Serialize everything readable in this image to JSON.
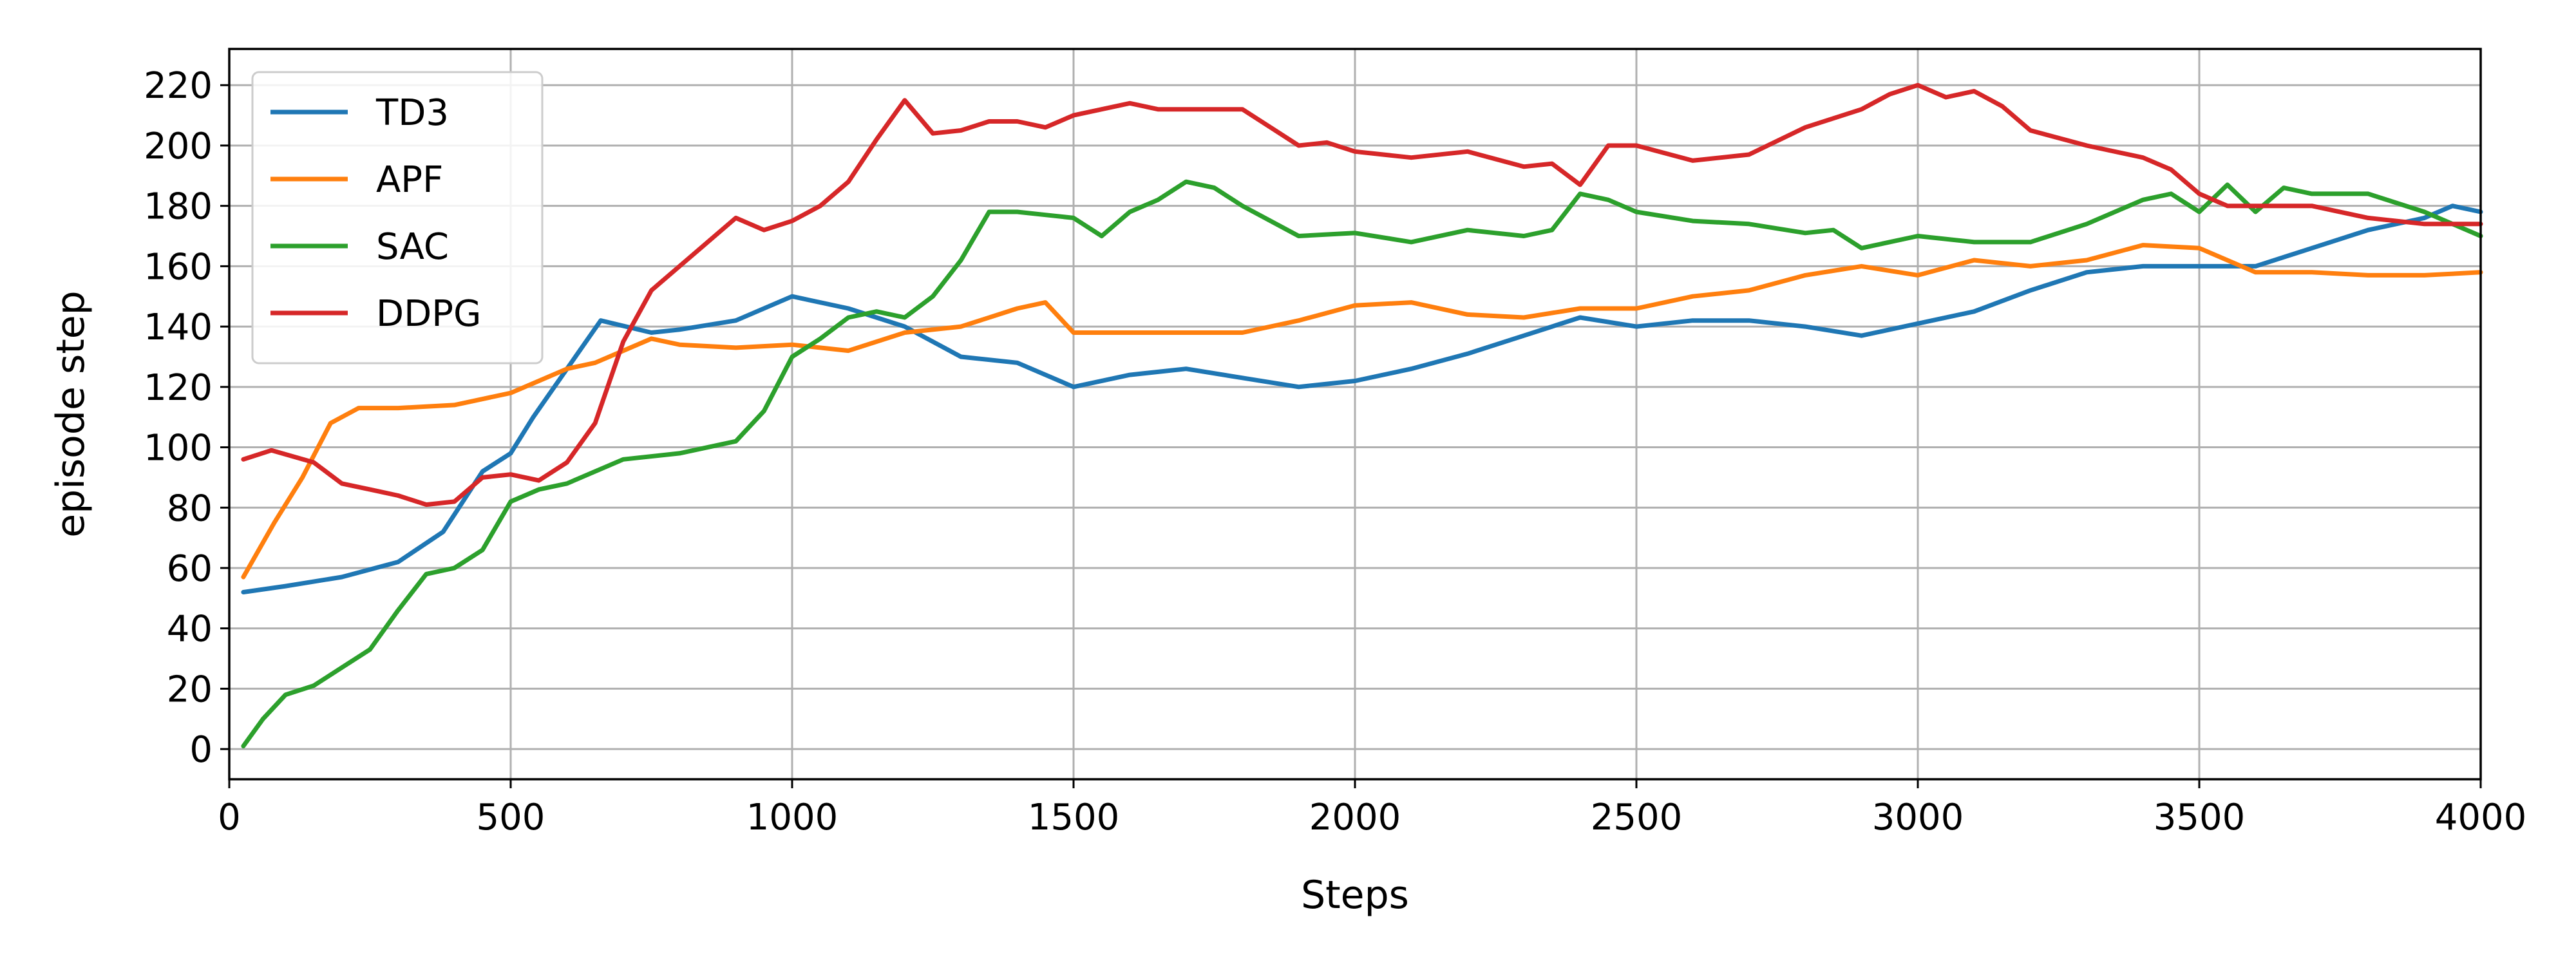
{
  "chart_data": {
    "type": "line",
    "xlabel": "Steps",
    "ylabel": "episode step",
    "xlim": [
      0,
      4000
    ],
    "ylim": [
      -10,
      232
    ],
    "xticks": [
      0,
      500,
      1000,
      1500,
      2000,
      2500,
      3000,
      3500,
      4000
    ],
    "xtick_labels": [
      "0",
      "500",
      "1000",
      "1500",
      "2000",
      "2500",
      "3000",
      "3500",
      "4000"
    ],
    "yticks": [
      0,
      20,
      40,
      60,
      80,
      100,
      120,
      140,
      160,
      180,
      200,
      220
    ],
    "ytick_labels": [
      "0",
      "20",
      "40",
      "60",
      "80",
      "100",
      "120",
      "140",
      "160",
      "180",
      "200",
      "220"
    ],
    "grid": true,
    "legend_position": "top-left",
    "series": [
      {
        "name": "TD3",
        "color": "#1f77b4",
        "x": [
          25,
          100,
          200,
          300,
          380,
          450,
          500,
          540,
          600,
          660,
          750,
          800,
          900,
          1000,
          1100,
          1200,
          1300,
          1400,
          1500,
          1600,
          1700,
          1800,
          1900,
          2000,
          2100,
          2200,
          2300,
          2400,
          2500,
          2600,
          2700,
          2800,
          2900,
          3000,
          3100,
          3200,
          3300,
          3400,
          3500,
          3600,
          3700,
          3800,
          3900,
          3950,
          4000
        ],
        "y": [
          52,
          54,
          57,
          62,
          72,
          92,
          98,
          110,
          126,
          142,
          138,
          139,
          142,
          150,
          146,
          140,
          130,
          128,
          120,
          124,
          126,
          123,
          120,
          122,
          126,
          131,
          137,
          143,
          140,
          142,
          142,
          140,
          137,
          141,
          145,
          152,
          158,
          160,
          160,
          160,
          166,
          172,
          176,
          180,
          178
        ]
      },
      {
        "name": "APF",
        "color": "#ff7f0e",
        "x": [
          25,
          80,
          130,
          180,
          230,
          300,
          400,
          500,
          550,
          600,
          650,
          700,
          750,
          800,
          900,
          1000,
          1100,
          1200,
          1300,
          1400,
          1450,
          1500,
          1600,
          1700,
          1800,
          1900,
          2000,
          2100,
          2200,
          2300,
          2400,
          2500,
          2600,
          2700,
          2800,
          2900,
          3000,
          3100,
          3200,
          3300,
          3400,
          3500,
          3600,
          3700,
          3800,
          3900,
          4000
        ],
        "y": [
          57,
          75,
          90,
          108,
          113,
          113,
          114,
          118,
          122,
          126,
          128,
          132,
          136,
          134,
          133,
          134,
          132,
          138,
          140,
          146,
          148,
          138,
          138,
          138,
          138,
          142,
          147,
          148,
          144,
          143,
          146,
          146,
          150,
          152,
          157,
          160,
          157,
          162,
          160,
          162,
          167,
          166,
          158,
          158,
          157,
          157,
          158
        ]
      },
      {
        "name": "SAC",
        "color": "#2ca02c",
        "x": [
          25,
          60,
          100,
          150,
          200,
          250,
          300,
          350,
          400,
          450,
          500,
          550,
          600,
          700,
          800,
          900,
          950,
          1000,
          1050,
          1100,
          1150,
          1200,
          1250,
          1300,
          1350,
          1400,
          1450,
          1500,
          1550,
          1600,
          1650,
          1700,
          1750,
          1800,
          1900,
          2000,
          2100,
          2200,
          2300,
          2350,
          2400,
          2450,
          2500,
          2600,
          2700,
          2800,
          2850,
          2900,
          3000,
          3100,
          3200,
          3300,
          3400,
          3450,
          3500,
          3550,
          3600,
          3650,
          3700,
          3800,
          3900,
          4000
        ],
        "y": [
          1,
          10,
          18,
          21,
          27,
          33,
          46,
          58,
          60,
          66,
          82,
          86,
          88,
          96,
          98,
          102,
          112,
          130,
          136,
          143,
          145,
          143,
          150,
          162,
          178,
          178,
          177,
          176,
          170,
          178,
          182,
          188,
          186,
          180,
          170,
          171,
          168,
          172,
          170,
          172,
          184,
          182,
          178,
          175,
          174,
          171,
          172,
          166,
          170,
          168,
          168,
          174,
          182,
          184,
          178,
          187,
          178,
          186,
          184,
          184,
          178,
          170
        ]
      },
      {
        "name": "DDPG",
        "color": "#d62728",
        "x": [
          25,
          75,
          150,
          200,
          250,
          300,
          350,
          400,
          450,
          500,
          550,
          600,
          650,
          700,
          750,
          800,
          850,
          900,
          950,
          1000,
          1050,
          1100,
          1150,
          1200,
          1250,
          1300,
          1350,
          1400,
          1450,
          1500,
          1550,
          1600,
          1650,
          1700,
          1750,
          1800,
          1850,
          1900,
          1950,
          2000,
          2100,
          2200,
          2300,
          2350,
          2400,
          2450,
          2500,
          2600,
          2700,
          2800,
          2900,
          2950,
          3000,
          3050,
          3100,
          3150,
          3200,
          3300,
          3400,
          3450,
          3500,
          3550,
          3600,
          3700,
          3800,
          3900,
          4000
        ],
        "y": [
          96,
          99,
          95,
          88,
          86,
          84,
          81,
          82,
          90,
          91,
          89,
          95,
          108,
          135,
          152,
          160,
          168,
          176,
          172,
          175,
          180,
          188,
          202,
          215,
          204,
          205,
          208,
          208,
          206,
          210,
          212,
          214,
          212,
          212,
          212,
          212,
          206,
          200,
          201,
          198,
          196,
          198,
          193,
          194,
          187,
          200,
          200,
          195,
          197,
          206,
          212,
          217,
          220,
          216,
          218,
          213,
          205,
          200,
          196,
          192,
          184,
          180,
          180,
          180,
          176,
          174,
          174
        ]
      }
    ]
  }
}
